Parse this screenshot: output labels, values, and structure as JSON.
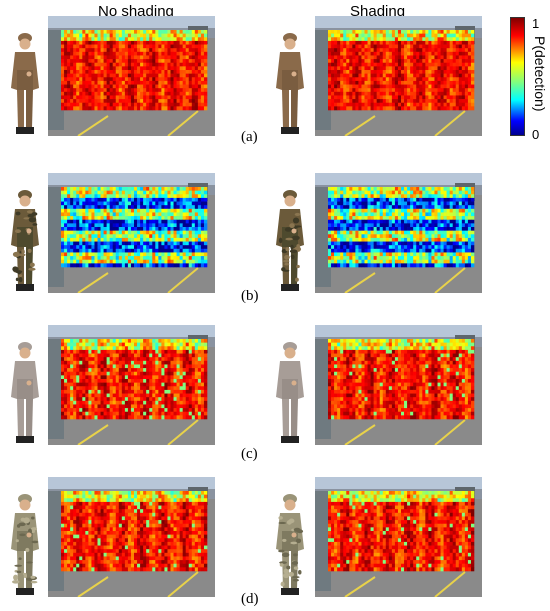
{
  "columns": {
    "left": "No shading",
    "right": "Shading"
  },
  "panels": [
    {
      "label": "(a)",
      "camouflage": "uniform-brown",
      "heatmap_level": "high"
    },
    {
      "label": "(b)",
      "camouflage": "woodland-pattern",
      "heatmap_level": "low"
    },
    {
      "label": "(c)",
      "camouflage": "uniform-grey",
      "heatmap_level": "high"
    },
    {
      "label": "(d)",
      "camouflage": "desert-pattern",
      "heatmap_level": "high"
    }
  ],
  "colorbar": {
    "title": "P(detection)",
    "max_label": "1",
    "min_label": "0",
    "colormap": [
      "#00008f",
      "#0000ff",
      "#00ffff",
      "#80ff80",
      "#ffff00",
      "#ff0000",
      "#800000"
    ]
  },
  "colors": {
    "sky": "#b7c6d8",
    "pavement": "#8a8a8a",
    "road_line": "#e8d24a"
  }
}
